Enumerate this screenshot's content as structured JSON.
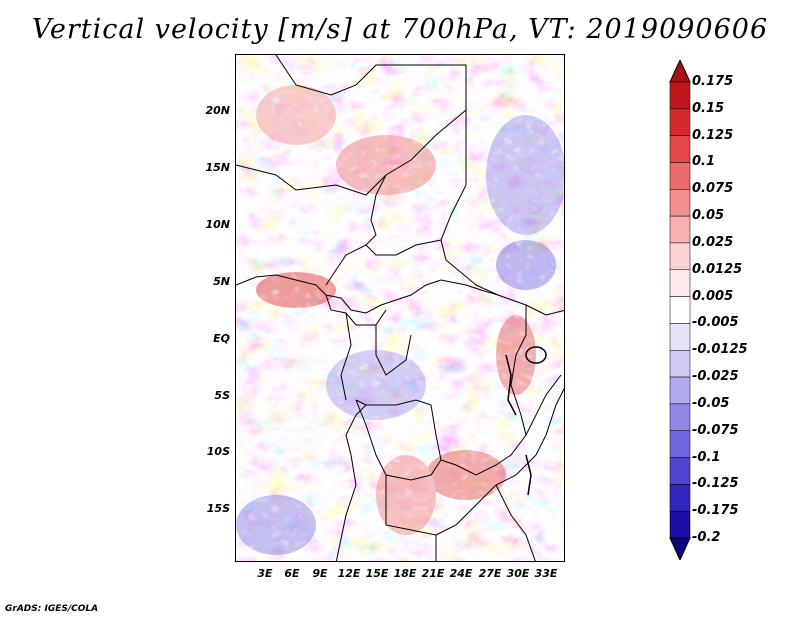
{
  "title": "Vertical velocity [m/s] at 700hPa, VT: 2019090606",
  "map": {
    "variable": "Vertical velocity",
    "units": "m/s",
    "level": "700hPa",
    "valid_time": "2019090606",
    "lat_labels": [
      "20N",
      "15N",
      "10N",
      "5N",
      "EQ",
      "5S",
      "10S",
      "15S"
    ],
    "lon_labels": [
      "3E",
      "6E",
      "9E",
      "12E",
      "15E",
      "18E",
      "21E",
      "24E",
      "27E",
      "30E",
      "33E"
    ]
  },
  "colorbar": {
    "labels": [
      "0.175",
      "0.15",
      "0.125",
      "0.1",
      "0.075",
      "0.05",
      "0.025",
      "0.0125",
      "0.005",
      "-0.005",
      "-0.0125",
      "-0.025",
      "-0.05",
      "-0.075",
      "-0.1",
      "-0.125",
      "-0.175",
      "-0.2"
    ],
    "colors": [
      "#a50f15",
      "#c0171c",
      "#d62a2a",
      "#e34848",
      "#eb6a6a",
      "#f28e8e",
      "#f7b1b1",
      "#fbd2d2",
      "#fdeaea",
      "#ffffff",
      "#e6e4fa",
      "#cfcbf5",
      "#b0abef",
      "#8f88e6",
      "#6f66dd",
      "#4f45cf",
      "#3126bd",
      "#1c0fa3",
      "#0c0480"
    ]
  },
  "credit": "GrADS: IGES/COLA"
}
